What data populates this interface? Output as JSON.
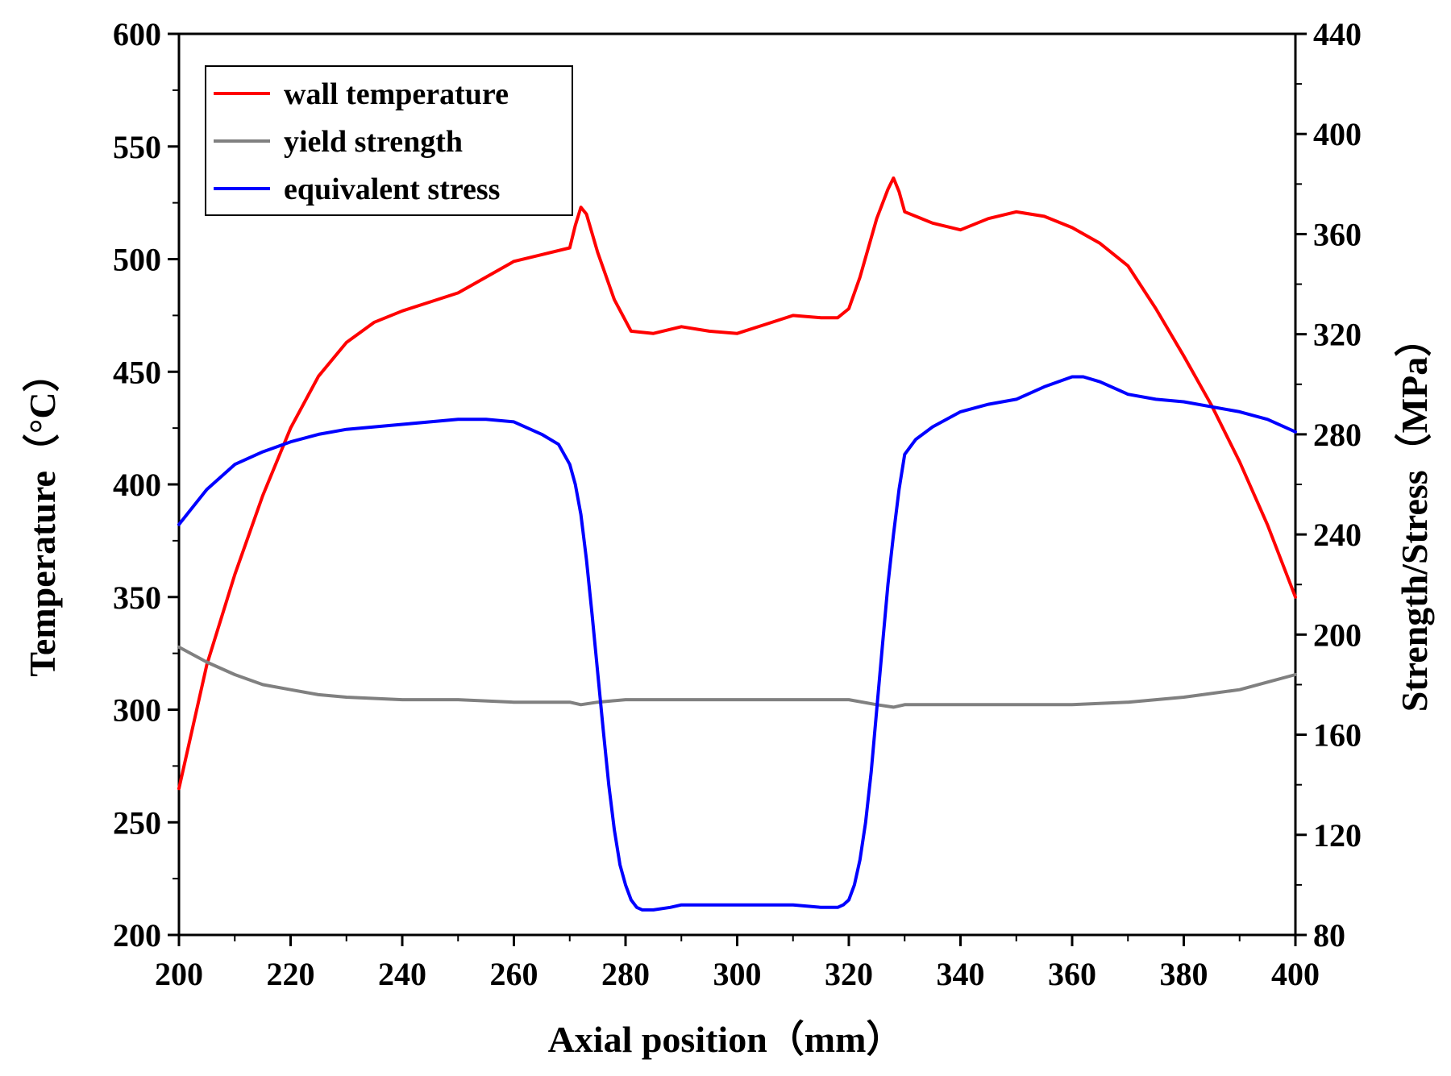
{
  "chart_data": {
    "type": "line",
    "title": "",
    "xlabel": "Axial position（mm）",
    "ylabel_left": "Temperature（°C）",
    "ylabel_right": "Strength/Stress（MPa）",
    "xlim": [
      200,
      400
    ],
    "ylim_left": [
      200,
      600
    ],
    "ylim_right": [
      80,
      440
    ],
    "x_ticks": [
      "200",
      "220",
      "240",
      "260",
      "280",
      "300",
      "320",
      "340",
      "360",
      "380",
      "400"
    ],
    "y_left_ticks": [
      "200",
      "250",
      "300",
      "350",
      "400",
      "450",
      "500",
      "550",
      "600"
    ],
    "y_right_ticks": [
      "80",
      "120",
      "160",
      "200",
      "240",
      "280",
      "320",
      "360",
      "400",
      "440"
    ],
    "legend_position": "top-left",
    "grid": false,
    "series": [
      {
        "name": "wall temperature",
        "axis": "left",
        "color": "#ff0000",
        "x": [
          200,
          205,
          210,
          215,
          220,
          225,
          230,
          235,
          240,
          245,
          250,
          255,
          260,
          265,
          270,
          271,
          272,
          273,
          275,
          278,
          281,
          285,
          290,
          295,
          300,
          305,
          310,
          315,
          318,
          320,
          322,
          325,
          327,
          328,
          329,
          330,
          335,
          340,
          345,
          350,
          355,
          360,
          365,
          370,
          375,
          380,
          385,
          390,
          395,
          400
        ],
        "y": [
          265,
          320,
          360,
          395,
          425,
          448,
          463,
          472,
          477,
          481,
          485,
          492,
          499,
          502,
          505,
          515,
          523,
          520,
          503,
          482,
          468,
          467,
          470,
          468,
          467,
          471,
          475,
          474,
          474,
          478,
          492,
          518,
          531,
          536,
          530,
          521,
          516,
          513,
          518,
          521,
          519,
          514,
          507,
          497,
          478,
          457,
          435,
          410,
          382,
          350
        ]
      },
      {
        "name": "yield strength",
        "axis": "right",
        "color": "#808080",
        "x": [
          200,
          205,
          210,
          215,
          220,
          225,
          230,
          240,
          250,
          260,
          270,
          272,
          275,
          280,
          290,
          300,
          310,
          315,
          320,
          325,
          328,
          330,
          340,
          350,
          360,
          370,
          380,
          390,
          395,
          400
        ],
        "y": [
          195,
          189,
          184,
          180,
          178,
          176,
          175,
          174,
          174,
          173,
          173,
          172,
          173,
          174,
          174,
          174,
          174,
          174,
          174,
          172,
          171,
          172,
          172,
          172,
          172,
          173,
          175,
          178,
          181,
          184
        ]
      },
      {
        "name": "equivalent stress",
        "axis": "right",
        "color": "#0000ff",
        "x": [
          200,
          205,
          210,
          215,
          220,
          225,
          230,
          235,
          240,
          245,
          250,
          255,
          260,
          265,
          268,
          270,
          271,
          272,
          273,
          274,
          275,
          276,
          277,
          278,
          279,
          280,
          281,
          282,
          283,
          285,
          288,
          290,
          295,
          300,
          305,
          310,
          315,
          316,
          318,
          319,
          320,
          321,
          322,
          323,
          324,
          325,
          326,
          327,
          328,
          329,
          330,
          332,
          335,
          340,
          345,
          350,
          355,
          360,
          362,
          365,
          370,
          375,
          380,
          385,
          390,
          395,
          400
        ],
        "y": [
          244,
          258,
          268,
          273,
          277,
          280,
          282,
          283,
          284,
          285,
          286,
          286,
          285,
          280,
          276,
          268,
          260,
          248,
          230,
          208,
          185,
          162,
          140,
          122,
          108,
          100,
          94,
          91,
          90,
          90,
          91,
          92,
          92,
          92,
          92,
          92,
          91,
          91,
          91,
          92,
          94,
          100,
          110,
          125,
          145,
          170,
          195,
          220,
          240,
          258,
          272,
          278,
          283,
          289,
          292,
          294,
          299,
          303,
          303,
          301,
          296,
          294,
          293,
          291,
          289,
          286,
          281
        ]
      }
    ]
  }
}
